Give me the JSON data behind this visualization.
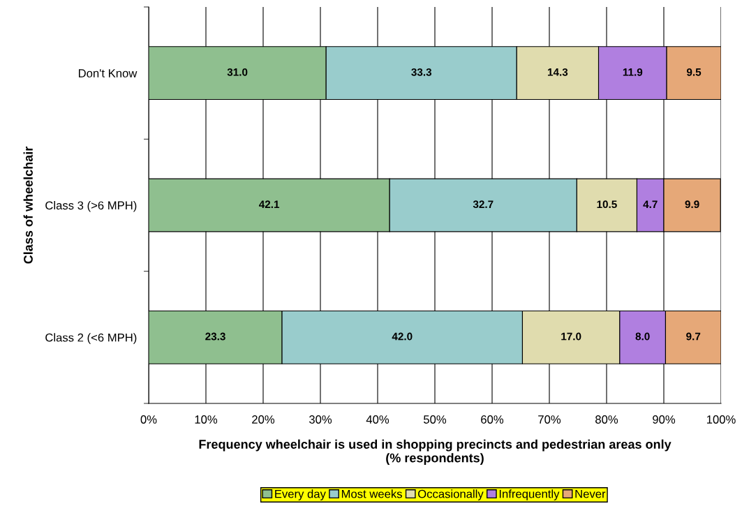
{
  "chart_data": {
    "type": "bar",
    "orientation": "horizontal",
    "stacked": true,
    "xlabel": "Frequency wheelchair is used in shopping precincts and pedestrian areas only\n(% respondents)",
    "ylabel": "Class of wheelchair",
    "categories": [
      "Don't Know",
      "Class 3 (>6 MPH)",
      "Class 2 (<6 MPH)"
    ],
    "series": [
      {
        "name": "Every day",
        "color": "#8fbf8f",
        "values": [
          31.0,
          42.1,
          23.3
        ],
        "value_labels": [
          "31.0",
          "42.1",
          "23.3"
        ]
      },
      {
        "name": "Most weeks",
        "color": "#99cccc",
        "values": [
          33.3,
          32.7,
          42.0
        ],
        "value_labels": [
          "33.3",
          "32.7",
          "42.0"
        ]
      },
      {
        "name": "Occasionally",
        "color": "#e0dcae",
        "values": [
          14.3,
          10.5,
          17.0
        ],
        "value_labels": [
          "14.3",
          "10.5",
          "17.0"
        ]
      },
      {
        "name": "Infrequently",
        "color": "#b07fe0",
        "values": [
          11.9,
          4.7,
          8.0
        ],
        "value_labels": [
          "11.9",
          "4.7",
          "8.0"
        ]
      },
      {
        "name": "Never",
        "color": "#e6a878",
        "values": [
          9.5,
          9.9,
          9.7
        ],
        "value_labels": [
          "9.5",
          "9.9",
          "9.7"
        ]
      }
    ],
    "xlim": [
      0,
      100
    ],
    "xticks": [
      {
        "value": 0,
        "label": "0%"
      },
      {
        "value": 10,
        "label": "10%"
      },
      {
        "value": 20,
        "label": "20%"
      },
      {
        "value": 30,
        "label": "30%"
      },
      {
        "value": 40,
        "label": "40%"
      },
      {
        "value": 50,
        "label": "50%"
      },
      {
        "value": 60,
        "label": "60%"
      },
      {
        "value": 70,
        "label": "70%"
      },
      {
        "value": 80,
        "label": "80%"
      },
      {
        "value": 90,
        "label": "90%"
      },
      {
        "value": 100,
        "label": "100%"
      }
    ],
    "grid": "x",
    "legend": "bottom"
  }
}
